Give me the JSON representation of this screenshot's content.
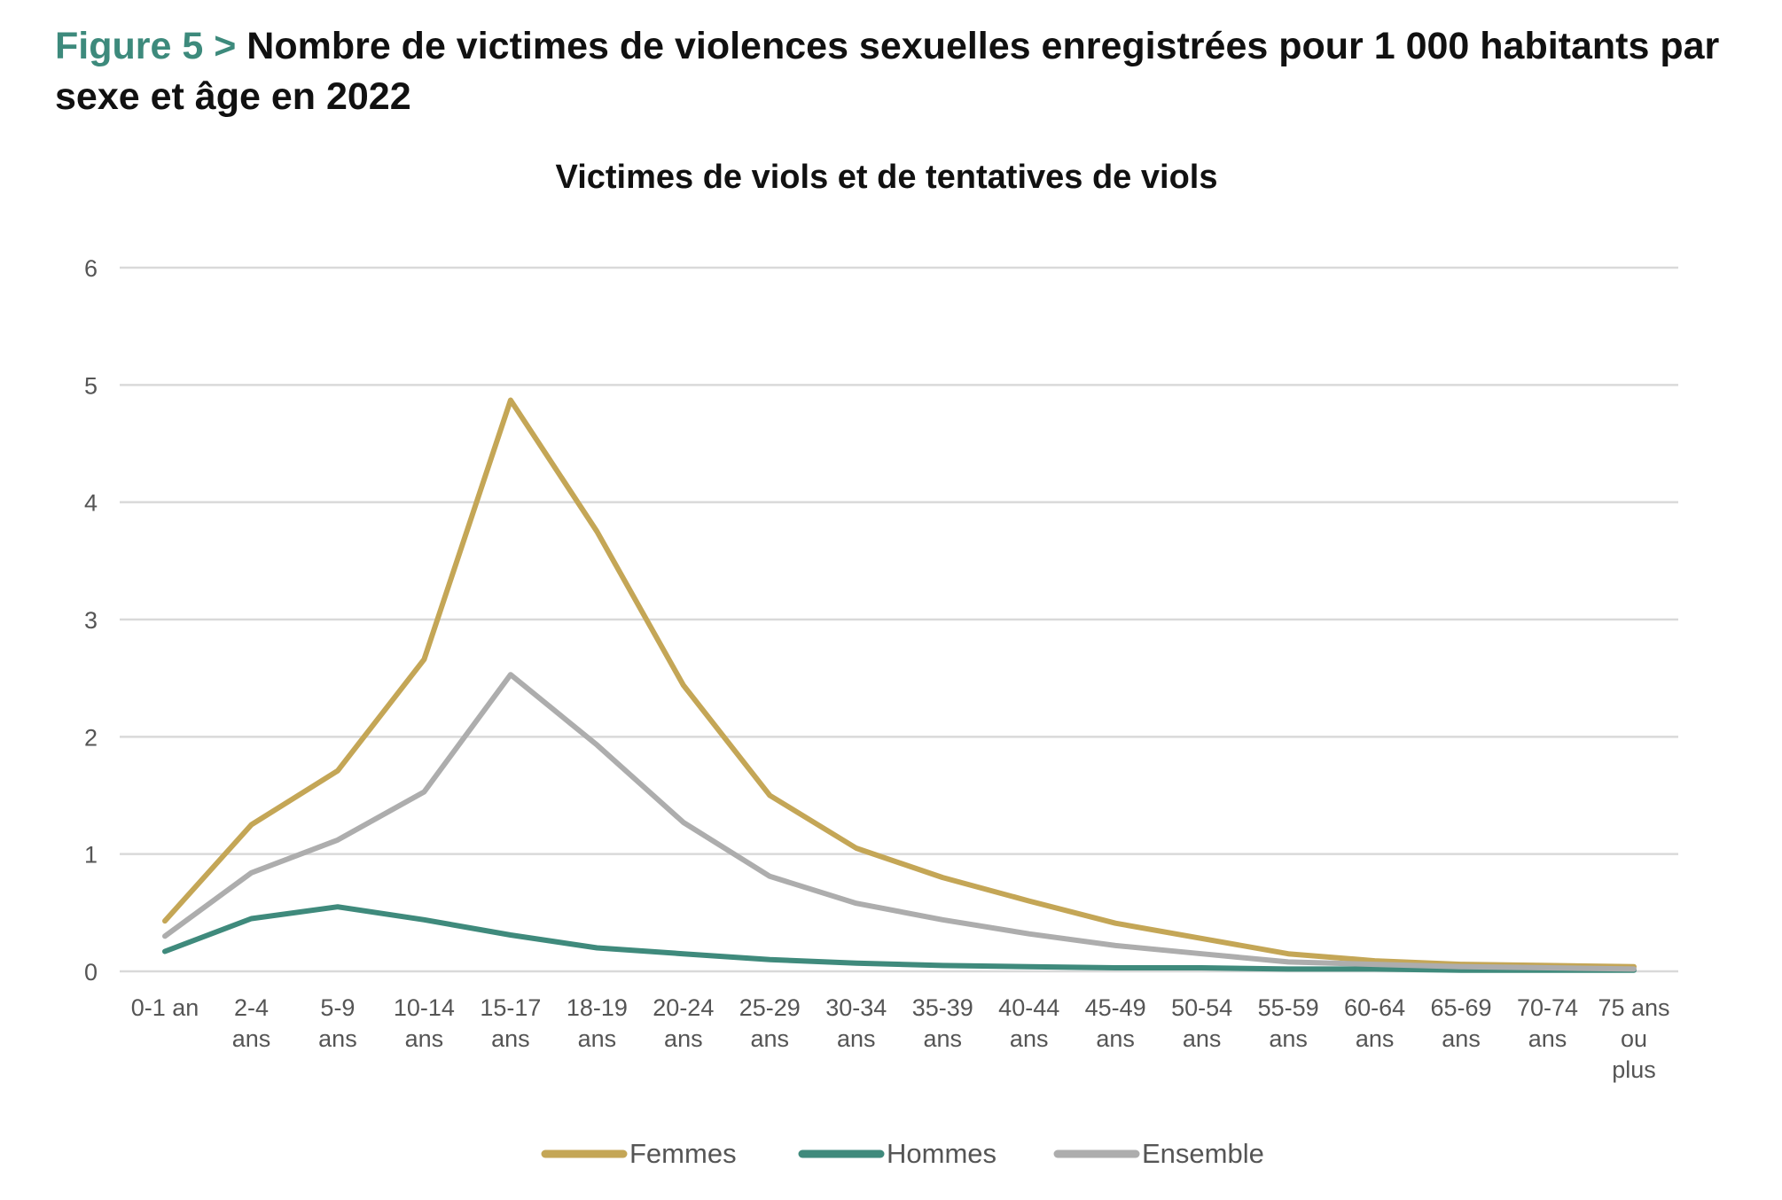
{
  "figure": {
    "prefix": "Figure 5 > ",
    "title": "Nombre de victimes de violences sexuelles enregistrées pour 1 000 habitants par sexe et âge en 2022"
  },
  "chart_data": {
    "type": "line",
    "title": "Victimes de viols et de tentatives de viols",
    "xlabel": "",
    "ylabel": "",
    "ylim": [
      0,
      6
    ],
    "yticks": [
      0,
      1,
      2,
      3,
      4,
      5,
      6
    ],
    "grid": true,
    "legend_position": "bottom",
    "categories": [
      [
        "0-1 an"
      ],
      [
        "2-4",
        "ans"
      ],
      [
        "5-9",
        "ans"
      ],
      [
        "10-14",
        "ans"
      ],
      [
        "15-17",
        "ans"
      ],
      [
        "18-19",
        "ans"
      ],
      [
        "20-24",
        "ans"
      ],
      [
        "25-29",
        "ans"
      ],
      [
        "30-34",
        "ans"
      ],
      [
        "35-39",
        "ans"
      ],
      [
        "40-44",
        "ans"
      ],
      [
        "45-49",
        "ans"
      ],
      [
        "50-54",
        "ans"
      ],
      [
        "55-59",
        "ans"
      ],
      [
        "60-64",
        "ans"
      ],
      [
        "65-69",
        "ans"
      ],
      [
        "70-74",
        "ans"
      ],
      [
        "75 ans",
        "ou",
        "plus"
      ]
    ],
    "series": [
      {
        "name": "Femmes",
        "color": "#c4a656",
        "values": [
          0.43,
          1.25,
          1.71,
          2.66,
          4.87,
          3.75,
          2.44,
          1.5,
          1.05,
          0.8,
          0.6,
          0.41,
          0.28,
          0.15,
          0.09,
          0.06,
          0.05,
          0.04
        ]
      },
      {
        "name": "Hommes",
        "color": "#3f8a7c",
        "values": [
          0.17,
          0.45,
          0.55,
          0.44,
          0.31,
          0.2,
          0.15,
          0.1,
          0.07,
          0.05,
          0.04,
          0.03,
          0.03,
          0.02,
          0.02,
          0.01,
          0.01,
          0.01
        ]
      },
      {
        "name": "Ensemble",
        "color": "#adadad",
        "values": [
          0.3,
          0.84,
          1.12,
          1.53,
          2.53,
          1.93,
          1.27,
          0.81,
          0.58,
          0.44,
          0.32,
          0.22,
          0.15,
          0.08,
          0.06,
          0.04,
          0.03,
          0.02
        ]
      }
    ]
  }
}
